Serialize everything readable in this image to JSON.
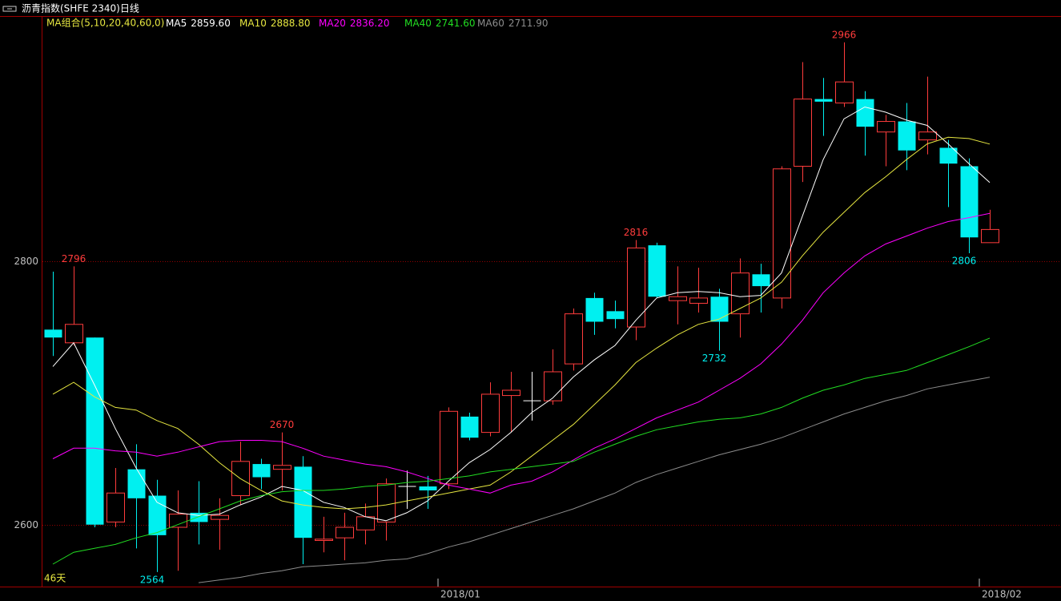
{
  "header": {
    "title": "沥青指数(SHFE 2340)日线"
  },
  "chart_data": {
    "type": "candlestick",
    "legend_title": "MA组合(5,10,20,40,60,0)",
    "period_label": "46天",
    "up_color": "#ff3c3c",
    "down_color": "#00f0f0",
    "flat_color": "#ffffff",
    "open": [
      2748,
      2738,
      2742,
      2602,
      2642,
      2622,
      2598,
      2609,
      2604,
      2622,
      2646,
      2642,
      2644,
      2588,
      2590,
      2596,
      2602,
      2629,
      2629,
      2631,
      2682,
      2670,
      2698,
      2694,
      2694,
      2722,
      2772,
      2762,
      2750,
      2812,
      2770,
      2768,
      2773,
      2760,
      2790,
      2772,
      2872,
      2923,
      2920,
      2923,
      2898,
      2906,
      2892,
      2886,
      2872,
      2814
    ],
    "high": [
      2792,
      2796,
      2742,
      2643,
      2661,
      2634,
      2626,
      2633,
      2620,
      2663,
      2650,
      2670,
      2652,
      2606,
      2609,
      2616,
      2635,
      2641,
      2637,
      2689,
      2685,
      2708,
      2716,
      2716,
      2733,
      2764,
      2776,
      2770,
      2816,
      2814,
      2796,
      2795,
      2779,
      2802,
      2798,
      2872,
      2951,
      2939,
      2966,
      2929,
      2911,
      2920,
      2940,
      2892,
      2878,
      2839
    ],
    "low": [
      2728,
      2736,
      2598,
      2598,
      2582,
      2564,
      2565,
      2585,
      2581,
      2615,
      2627,
      2626,
      2570,
      2579,
      2573,
      2585,
      2588,
      2612,
      2612,
      2627,
      2664,
      2667,
      2670,
      2679,
      2691,
      2717,
      2744,
      2749,
      2740,
      2772,
      2752,
      2761,
      2732,
      2742,
      2761,
      2764,
      2860,
      2895,
      2917,
      2880,
      2872,
      2869,
      2881,
      2841,
      2806,
      2814
    ],
    "close": [
      2742,
      2752,
      2600,
      2624,
      2620,
      2592,
      2608,
      2602,
      2607,
      2648,
      2636,
      2645,
      2590,
      2589,
      2598,
      2606,
      2631,
      2629,
      2626,
      2686,
      2666,
      2699,
      2702,
      2694,
      2716,
      2760,
      2754,
      2756,
      2810,
      2773,
      2773,
      2772,
      2754,
      2791,
      2781,
      2870,
      2923,
      2921,
      2936,
      2902,
      2906,
      2884,
      2898,
      2874,
      2818,
      2824
    ],
    "series": [
      {
        "name": "MA5",
        "color": "#ffffff",
        "value_label": "2859.60",
        "values": [
          2720,
          2738,
          2706,
          2673,
          2643,
          2617,
          2609,
          2607,
          2608,
          2615,
          2621,
          2629,
          2626,
          2617,
          2613,
          2606,
          2603,
          2609,
          2618,
          2633,
          2647,
          2657,
          2670,
          2685,
          2696,
          2712,
          2725,
          2736,
          2755,
          2772,
          2776,
          2777,
          2776,
          2773,
          2774,
          2791,
          2834,
          2877,
          2908,
          2917,
          2913,
          2907,
          2903,
          2889,
          2874,
          2859.6
        ]
      },
      {
        "name": "MA10",
        "color": "#e6e640",
        "value_label": "2888.80",
        "values": [
          2699,
          2708,
          2697,
          2689,
          2687,
          2679,
          2673,
          2661,
          2647,
          2635,
          2626,
          2618,
          2615,
          2613,
          2612,
          2613,
          2615,
          2618,
          2621,
          2624,
          2627,
          2630,
          2640,
          2652,
          2664,
          2676,
          2691,
          2706,
          2723,
          2734,
          2744,
          2752,
          2756,
          2764,
          2772,
          2784,
          2804,
          2822,
          2837,
          2852,
          2864,
          2877,
          2889,
          2894,
          2893,
          2888.8
        ]
      },
      {
        "name": "MA20",
        "color": "#ff00ff",
        "value_label": "2836.20",
        "values": [
          2650,
          2658,
          2658,
          2656,
          2655,
          2652,
          2655,
          2659,
          2663,
          2664,
          2664,
          2663,
          2658,
          2652,
          2649,
          2646,
          2644,
          2640,
          2635,
          2630,
          2627,
          2624,
          2630,
          2633,
          2640,
          2649,
          2658,
          2665,
          2673,
          2681,
          2687,
          2693,
          2702,
          2711,
          2722,
          2737,
          2755,
          2776,
          2791,
          2804,
          2813,
          2819,
          2825,
          2830,
          2833,
          2836.2
        ]
      },
      {
        "name": "MA40",
        "color": "#22dd22",
        "value_label": "2741.60",
        "values": [
          2570,
          2579,
          2582,
          2585,
          2590,
          2594,
          2600,
          2606,
          2612,
          2618,
          2622,
          2625,
          2626,
          2626,
          2627,
          2629,
          2630,
          2632,
          2633,
          2635,
          2637,
          2640,
          2642,
          2644,
          2646,
          2648,
          2655,
          2661,
          2667,
          2672,
          2675,
          2678,
          2680,
          2681,
          2684,
          2689,
          2696,
          2702,
          2706,
          2711,
          2714,
          2717,
          2723,
          2729,
          2735,
          2741.6
        ]
      },
      {
        "name": "MA60",
        "color": "#8c8c8c",
        "value_label": "2711.90",
        "values": [
          null,
          null,
          null,
          null,
          null,
          null,
          null,
          2556,
          2558,
          2560,
          2563,
          2565,
          2568,
          2569,
          2570,
          2571,
          2573,
          2574,
          2578,
          2583,
          2587,
          2592,
          2597,
          2602,
          2607,
          2612,
          2618,
          2624,
          2632,
          2638,
          2643,
          2648,
          2653,
          2657,
          2661,
          2666,
          2672,
          2678,
          2684,
          2689,
          2694,
          2698,
          2703,
          2706,
          2709,
          2711.9
        ]
      }
    ],
    "high_labels": [
      {
        "index": 1,
        "value": 2796
      },
      {
        "index": 11,
        "value": 2670
      },
      {
        "index": 28,
        "value": 2816
      },
      {
        "index": 38,
        "value": 2966
      }
    ],
    "low_labels": [
      {
        "index": 5,
        "value": 2564
      },
      {
        "index": 32,
        "value": 2732
      },
      {
        "index": 44,
        "value": 2806
      }
    ],
    "x_labels": [
      {
        "index": 19,
        "label": "2018/01"
      },
      {
        "index": 45,
        "label": "2018/02"
      }
    ],
    "ylim": [
      2553,
      2986
    ],
    "yticks": [
      2600,
      2800
    ],
    "grid": true
  }
}
